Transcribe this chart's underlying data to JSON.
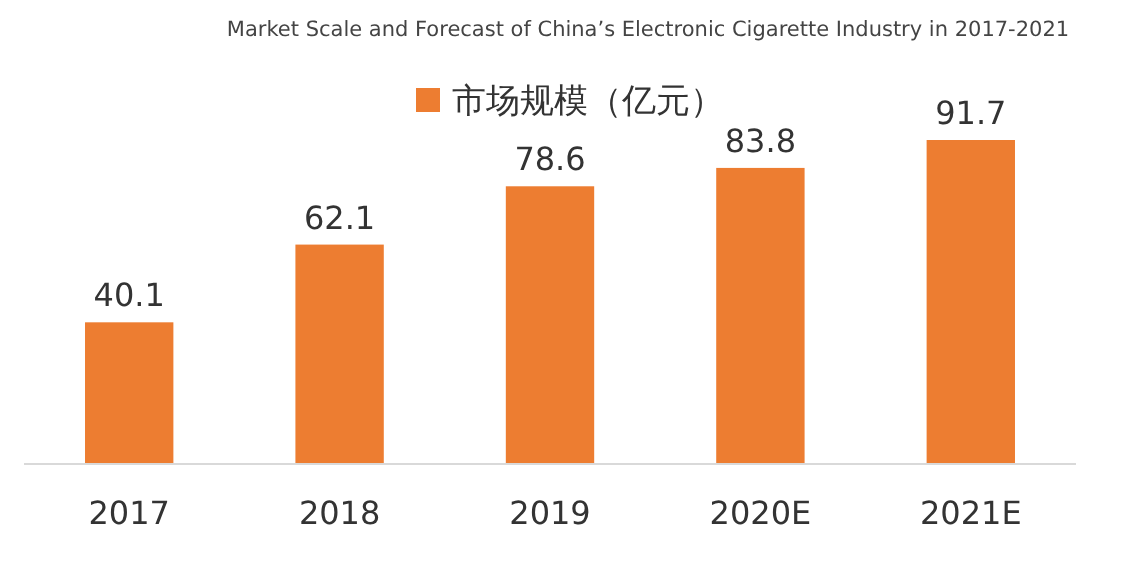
{
  "chart_data": {
    "type": "bar",
    "title": "Market Scale and Forecast of China’s Electronic Cigarette Industry in 2017-2021",
    "categories": [
      "2017",
      "2018",
      "2019",
      "2020E",
      "2021E"
    ],
    "series": [
      {
        "name": "市场规模（亿元）",
        "color": "#ed7d31",
        "values": [
          40.1,
          62.1,
          78.6,
          83.8,
          91.7
        ]
      }
    ],
    "data_labels": true,
    "legend": "top"
  }
}
